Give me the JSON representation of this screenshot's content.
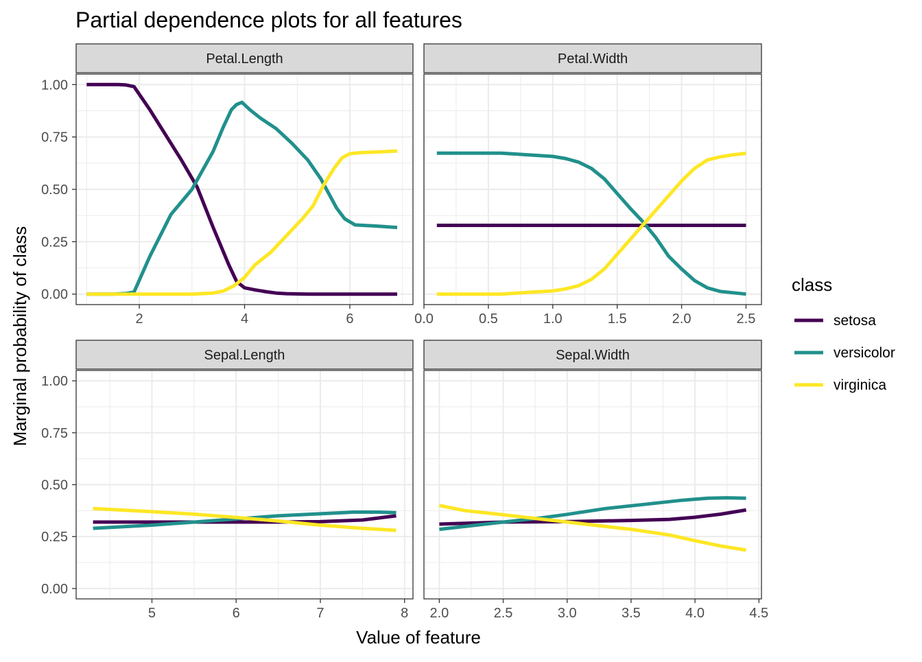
{
  "chart_data": {
    "type": "line",
    "title": "Partial dependence plots for all features",
    "xlabel": "Value of feature",
    "ylabel": "Marginal probability of class",
    "grid": true,
    "legend": {
      "title": "class",
      "position": "right",
      "entries": [
        {
          "name": "setosa",
          "color": "#440154"
        },
        {
          "name": "versicolor",
          "color": "#21908C"
        },
        {
          "name": "virginica",
          "color": "#FDE725"
        }
      ]
    },
    "y_ticks": [
      "0.00",
      "0.25",
      "0.50",
      "0.75",
      "1.00"
    ],
    "ylim": [
      -0.05,
      1.05
    ],
    "panels": [
      {
        "strip": "Petal.Length",
        "xlim": [
          0.8,
          7.2
        ],
        "x_ticks": [
          2,
          4,
          6
        ],
        "x_tick_labels": [
          "2",
          "4",
          "6"
        ],
        "series": [
          {
            "name": "setosa",
            "x": [
              1.0,
              1.3,
              1.6,
              1.75,
              1.9,
              2.2,
              2.5,
              2.8,
              3.1,
              3.4,
              3.7,
              3.85,
              4.0,
              4.2,
              4.4,
              4.6,
              4.8,
              5.2,
              5.6,
              6.0,
              6.4,
              6.9
            ],
            "y": [
              1.0,
              1.0,
              1.0,
              0.998,
              0.99,
              0.88,
              0.76,
              0.64,
              0.51,
              0.32,
              0.14,
              0.06,
              0.03,
              0.02,
              0.012,
              0.005,
              0.002,
              0.0,
              0.0,
              0.0,
              0.0,
              0.0
            ]
          },
          {
            "name": "versicolor",
            "x": [
              1.0,
              1.5,
              1.75,
              1.9,
              2.2,
              2.6,
              3.0,
              3.4,
              3.6,
              3.75,
              3.85,
              3.95,
              4.1,
              4.3,
              4.6,
              4.9,
              5.2,
              5.45,
              5.6,
              5.75,
              5.9,
              6.1,
              6.5,
              6.9
            ],
            "y": [
              0.0,
              0.0,
              0.003,
              0.01,
              0.18,
              0.38,
              0.5,
              0.68,
              0.8,
              0.88,
              0.905,
              0.915,
              0.88,
              0.84,
              0.79,
              0.72,
              0.64,
              0.55,
              0.48,
              0.41,
              0.36,
              0.33,
              0.325,
              0.318
            ]
          },
          {
            "name": "virginica",
            "x": [
              1.0,
              2.0,
              3.0,
              3.4,
              3.6,
              3.8,
              4.0,
              4.2,
              4.5,
              4.8,
              5.1,
              5.3,
              5.5,
              5.7,
              5.85,
              6.0,
              6.2,
              6.5,
              6.9
            ],
            "y": [
              0.0,
              0.0,
              0.0,
              0.005,
              0.015,
              0.04,
              0.08,
              0.14,
              0.2,
              0.28,
              0.36,
              0.42,
              0.52,
              0.6,
              0.65,
              0.67,
              0.675,
              0.678,
              0.683
            ]
          }
        ]
      },
      {
        "strip": "Petal.Width",
        "xlim": [
          0.0,
          2.62
        ],
        "x_ticks": [
          0.0,
          0.5,
          1.0,
          1.5,
          2.0,
          2.5
        ],
        "x_tick_labels": [
          "0.0",
          "0.5",
          "1.0",
          "1.5",
          "2.0",
          "2.5"
        ],
        "series": [
          {
            "name": "setosa",
            "x": [
              0.1,
              2.5
            ],
            "y": [
              0.328,
              0.328
            ]
          },
          {
            "name": "versicolor",
            "x": [
              0.1,
              0.6,
              0.8,
              1.0,
              1.1,
              1.2,
              1.3,
              1.4,
              1.5,
              1.6,
              1.7,
              1.8,
              1.9,
              2.0,
              2.1,
              2.2,
              2.3,
              2.5
            ],
            "y": [
              0.673,
              0.673,
              0.665,
              0.657,
              0.647,
              0.63,
              0.6,
              0.55,
              0.48,
              0.41,
              0.345,
              0.27,
              0.18,
              0.12,
              0.065,
              0.03,
              0.013,
              0.0
            ]
          },
          {
            "name": "virginica",
            "x": [
              0.1,
              0.6,
              0.8,
              1.0,
              1.1,
              1.2,
              1.3,
              1.4,
              1.5,
              1.6,
              1.7,
              1.8,
              1.9,
              2.0,
              2.1,
              2.2,
              2.3,
              2.4,
              2.5
            ],
            "y": [
              0.0,
              0.0,
              0.008,
              0.015,
              0.025,
              0.04,
              0.07,
              0.12,
              0.19,
              0.26,
              0.33,
              0.4,
              0.47,
              0.54,
              0.6,
              0.64,
              0.655,
              0.665,
              0.672
            ]
          }
        ]
      },
      {
        "strip": "Sepal.Length",
        "xlim": [
          4.1,
          8.1
        ],
        "x_ticks": [
          5,
          6,
          7,
          8
        ],
        "x_tick_labels": [
          "5",
          "6",
          "7",
          "8"
        ],
        "series": [
          {
            "name": "setosa",
            "x": [
              4.3,
              5.0,
              5.5,
              6.0,
              6.5,
              7.0,
              7.5,
              7.9
            ],
            "y": [
              0.32,
              0.32,
              0.32,
              0.32,
              0.32,
              0.322,
              0.33,
              0.35
            ]
          },
          {
            "name": "versicolor",
            "x": [
              4.3,
              5.0,
              5.5,
              6.0,
              6.5,
              7.0,
              7.4,
              7.7,
              7.9
            ],
            "y": [
              0.29,
              0.305,
              0.32,
              0.335,
              0.35,
              0.36,
              0.368,
              0.368,
              0.365
            ]
          },
          {
            "name": "virginica",
            "x": [
              4.3,
              5.0,
              5.5,
              6.0,
              6.5,
              7.0,
              7.5,
              7.9
            ],
            "y": [
              0.385,
              0.37,
              0.358,
              0.342,
              0.325,
              0.305,
              0.29,
              0.28
            ]
          }
        ]
      },
      {
        "strip": "Sepal.Width",
        "xlim": [
          1.88,
          4.52
        ],
        "x_ticks": [
          2.0,
          2.5,
          3.0,
          3.5,
          4.0,
          4.5
        ],
        "x_tick_labels": [
          "2.0",
          "2.5",
          "3.0",
          "3.5",
          "4.0",
          "4.5"
        ],
        "series": [
          {
            "name": "setosa",
            "x": [
              2.0,
              2.5,
              3.0,
              3.5,
              3.8,
              4.0,
              4.2,
              4.4
            ],
            "y": [
              0.31,
              0.32,
              0.322,
              0.328,
              0.333,
              0.343,
              0.358,
              0.378
            ]
          },
          {
            "name": "versicolor",
            "x": [
              2.0,
              2.5,
              2.8,
              3.0,
              3.3,
              3.6,
              3.9,
              4.1,
              4.25,
              4.4
            ],
            "y": [
              0.285,
              0.32,
              0.34,
              0.357,
              0.385,
              0.405,
              0.425,
              0.435,
              0.437,
              0.435
            ]
          },
          {
            "name": "virginica",
            "x": [
              2.0,
              2.2,
              2.5,
              3.0,
              3.5,
              3.8,
              4.0,
              4.2,
              4.4
            ],
            "y": [
              0.4,
              0.375,
              0.355,
              0.32,
              0.285,
              0.258,
              0.23,
              0.205,
              0.185
            ]
          }
        ]
      }
    ]
  }
}
